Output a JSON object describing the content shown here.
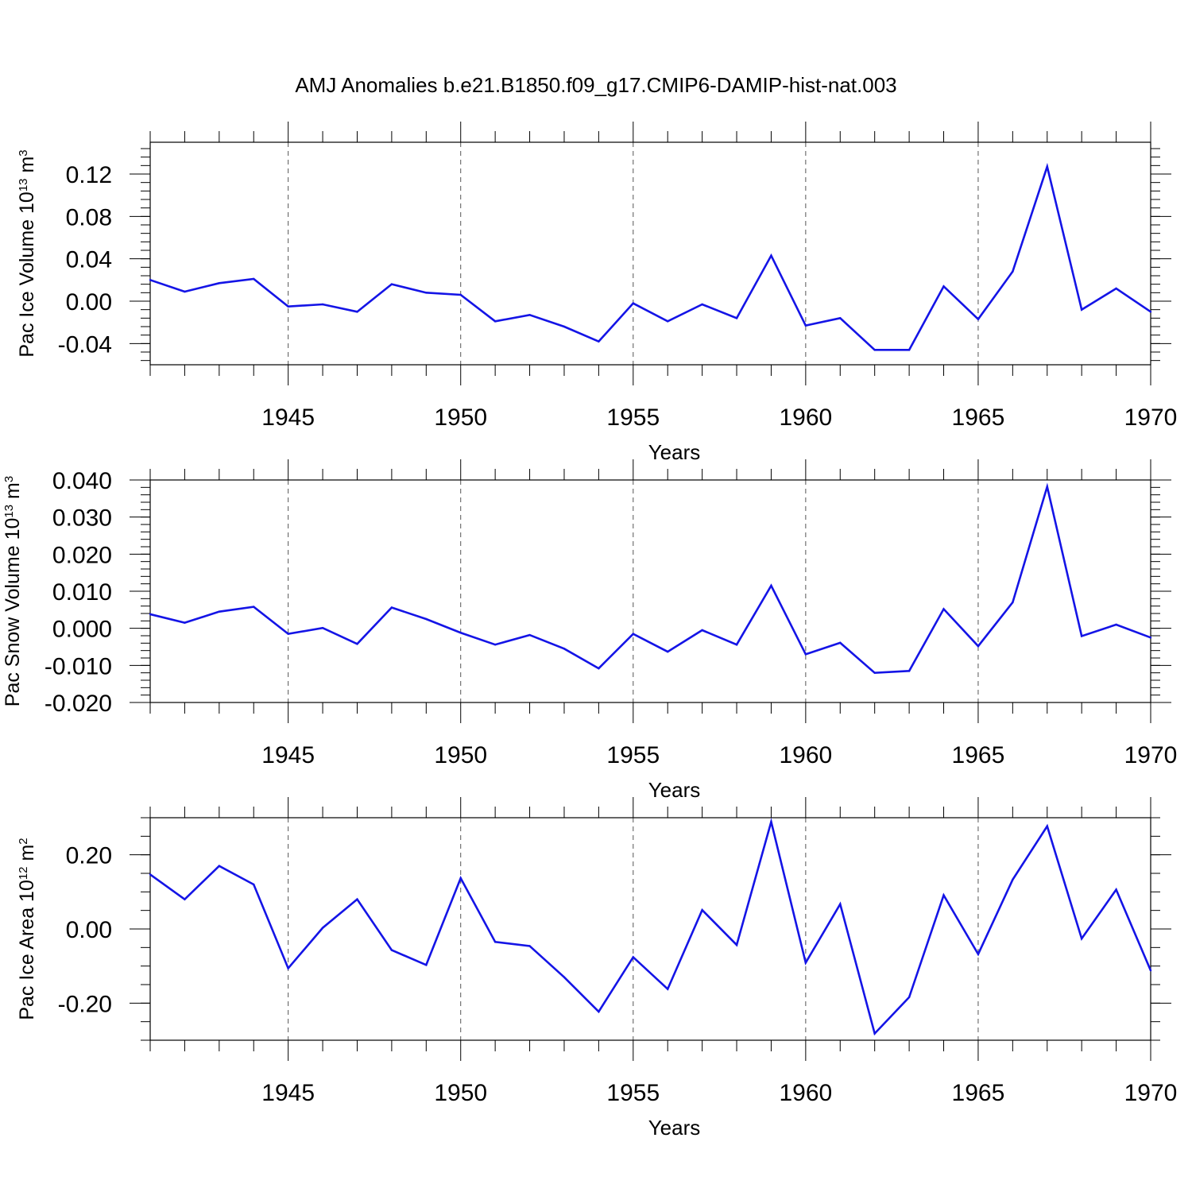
{
  "title": "AMJ Anomalies b.e21.B1850.f09_g17.CMIP6-DAMIP-hist-nat.003",
  "colors": {
    "line": "#1414e6",
    "axis": "#000000",
    "grid": "#555555"
  },
  "chart_data": [
    {
      "type": "line",
      "ylabel": "Pac Ice Volume 10",
      "ylabel_exp": "13",
      "ylabel_unit": " m",
      "ylabel_unit_exp": "3",
      "xlabel": "Years",
      "xlim": [
        1941,
        1970
      ],
      "ylim": [
        -0.06,
        0.15
      ],
      "yticks": [
        -0.04,
        0.0,
        0.04,
        0.08,
        0.12
      ],
      "ytick_labels": [
        "-0.04",
        "0.00",
        "0.04",
        "0.08",
        "0.12"
      ],
      "yminor_step": 0.008,
      "xticks": [
        1945,
        1950,
        1955,
        1960,
        1965,
        1970
      ],
      "xtick_labels": [
        "1945",
        "1950",
        "1955",
        "1960",
        "1965",
        "1970"
      ],
      "x": [
        1941,
        1942,
        1943,
        1944,
        1945,
        1946,
        1947,
        1948,
        1949,
        1950,
        1951,
        1952,
        1953,
        1954,
        1955,
        1956,
        1957,
        1958,
        1959,
        1960,
        1961,
        1962,
        1963,
        1964,
        1965,
        1966,
        1967,
        1968,
        1969,
        1970
      ],
      "values": [
        0.02,
        0.009,
        0.017,
        0.021,
        -0.005,
        -0.003,
        -0.01,
        0.016,
        0.008,
        0.006,
        -0.019,
        -0.013,
        -0.024,
        -0.038,
        -0.002,
        -0.019,
        -0.003,
        -0.016,
        0.043,
        -0.023,
        -0.016,
        -0.046,
        -0.046,
        0.014,
        -0.017,
        0.028,
        0.127,
        -0.008,
        0.012,
        -0.01
      ]
    },
    {
      "type": "line",
      "ylabel": "Pac Snow Volume 10",
      "ylabel_exp": "13",
      "ylabel_unit": " m",
      "ylabel_unit_exp": "3",
      "xlabel": "Years",
      "xlim": [
        1941,
        1970
      ],
      "ylim": [
        -0.02,
        0.04
      ],
      "yticks": [
        -0.02,
        -0.01,
        0.0,
        0.01,
        0.02,
        0.03,
        0.04
      ],
      "ytick_labels": [
        "-0.020",
        "-0.010",
        "0.000",
        "0.010",
        "0.020",
        "0.030",
        "0.040"
      ],
      "yminor_step": 0.002,
      "xticks": [
        1945,
        1950,
        1955,
        1960,
        1965,
        1970
      ],
      "xtick_labels": [
        "1945",
        "1950",
        "1955",
        "1960",
        "1965",
        "1970"
      ],
      "x": [
        1941,
        1942,
        1943,
        1944,
        1945,
        1946,
        1947,
        1948,
        1949,
        1950,
        1951,
        1952,
        1953,
        1954,
        1955,
        1956,
        1957,
        1958,
        1959,
        1960,
        1961,
        1962,
        1963,
        1964,
        1965,
        1966,
        1967,
        1968,
        1969,
        1970
      ],
      "values": [
        0.0038,
        0.0015,
        0.0045,
        0.0058,
        -0.0015,
        0.0001,
        -0.0042,
        0.0056,
        0.0025,
        -0.0012,
        -0.0044,
        -0.0018,
        -0.0055,
        -0.0108,
        -0.0015,
        -0.0063,
        -0.0005,
        -0.0044,
        0.0115,
        -0.007,
        -0.0039,
        -0.012,
        -0.0115,
        0.0052,
        -0.0048,
        0.007,
        0.0382,
        -0.0021,
        0.001,
        -0.0025
      ]
    },
    {
      "type": "line",
      "ylabel": "Pac Ice Area 10",
      "ylabel_exp": "12",
      "ylabel_unit": " m",
      "ylabel_unit_exp": "2",
      "xlabel": "Years",
      "xlim": [
        1941,
        1970
      ],
      "ylim": [
        -0.3,
        0.3
      ],
      "yticks": [
        -0.2,
        0.0,
        0.2
      ],
      "ytick_labels": [
        "-0.20",
        "0.00",
        "0.20"
      ],
      "yminor_step": 0.05,
      "xticks": [
        1945,
        1950,
        1955,
        1960,
        1965,
        1970
      ],
      "xtick_labels": [
        "1945",
        "1950",
        "1955",
        "1960",
        "1965",
        "1970"
      ],
      "x": [
        1941,
        1942,
        1943,
        1944,
        1945,
        1946,
        1947,
        1948,
        1949,
        1950,
        1951,
        1952,
        1953,
        1954,
        1955,
        1956,
        1957,
        1958,
        1959,
        1960,
        1961,
        1962,
        1963,
        1964,
        1965,
        1966,
        1967,
        1968,
        1969,
        1970
      ],
      "values": [
        0.147,
        0.08,
        0.17,
        0.12,
        -0.106,
        0.003,
        0.08,
        -0.057,
        -0.097,
        0.137,
        -0.035,
        -0.046,
        -0.13,
        -0.223,
        -0.076,
        -0.162,
        0.051,
        -0.043,
        0.289,
        -0.091,
        0.067,
        -0.282,
        -0.184,
        0.091,
        -0.068,
        0.133,
        0.277,
        -0.026,
        0.106,
        -0.112
      ]
    }
  ]
}
